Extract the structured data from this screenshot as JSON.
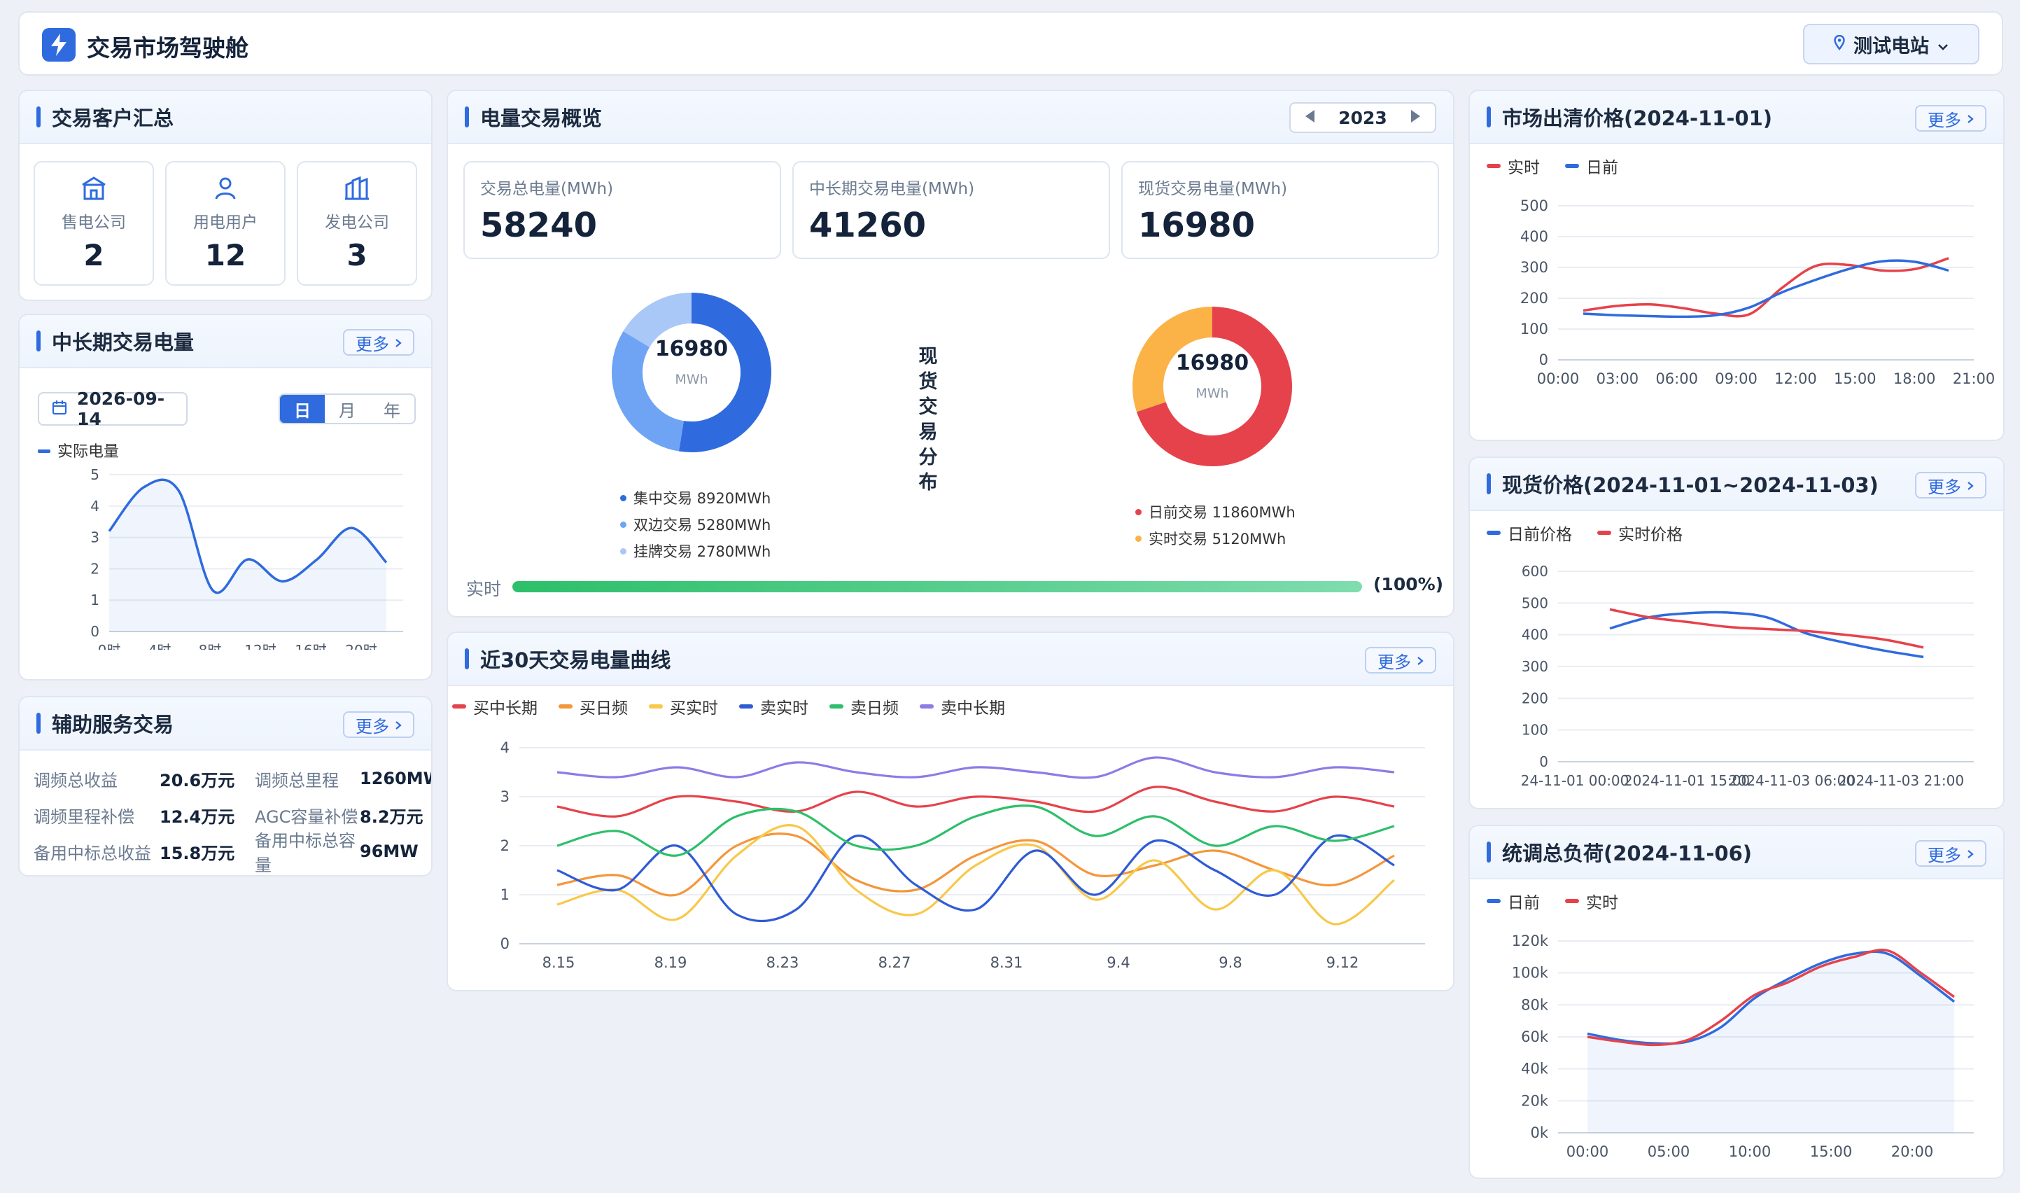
{
  "app": {
    "title": "交易市场驾驶舱",
    "station": "测试电站"
  },
  "more_label": "更多",
  "customers": {
    "title": "交易客户汇总",
    "items": [
      {
        "label": "售电公司",
        "value": "2",
        "icon": "building-icon"
      },
      {
        "label": "用电用户",
        "value": "12",
        "icon": "user-icon"
      },
      {
        "label": "发电公司",
        "value": "3",
        "icon": "factory-icon"
      }
    ]
  },
  "midlong": {
    "title": "中长期交易电量",
    "date": "2026-09-14",
    "tabs": [
      "日",
      "月",
      "年"
    ],
    "active_tab": "日",
    "chart_data": {
      "type": "area",
      "series": [
        {
          "name": "实际电量",
          "values": [
            3.2,
            4.6,
            4.5,
            1.3,
            2.3,
            1.6,
            2.3,
            3.3,
            2.2
          ]
        }
      ],
      "x_ticks": [
        "0时",
        "4时",
        "8时",
        "12时",
        "16时",
        "20时"
      ],
      "y_ticks": [
        "0",
        "1",
        "2",
        "3",
        "4",
        "5"
      ],
      "ylim": [
        0,
        5
      ],
      "color": "#2f6bde"
    }
  },
  "aux": {
    "title": "辅助服务交易",
    "rows": [
      [
        {
          "k": "调频总收益",
          "v": "20.6万元"
        },
        {
          "k": "调频总里程",
          "v": "1260MW"
        }
      ],
      [
        {
          "k": "调频里程补偿",
          "v": "12.4万元"
        },
        {
          "k": "AGC容量补偿",
          "v": "8.2万元"
        }
      ],
      [
        {
          "k": "备用中标总收益",
          "v": "15.8万元"
        },
        {
          "k": "备用中标总容量",
          "v": "96MW"
        }
      ]
    ]
  },
  "overview": {
    "title": "电量交易概览",
    "year": "2023",
    "stats": [
      {
        "label": "交易总电量(MWh)",
        "value": "58240"
      },
      {
        "label": "中长期交易电量(MWh)",
        "value": "41260"
      },
      {
        "label": "现货交易电量(MWh)",
        "value": "16980"
      }
    ],
    "center_title": "现货交易分布",
    "donut_left": {
      "total": "16980",
      "unit": "MWh",
      "chart_data": {
        "type": "pie",
        "slices": [
          {
            "name": "集中交易",
            "value": 8920,
            "label": "集中交易 8920MWh",
            "color": "#2f6bde"
          },
          {
            "name": "双边交易",
            "value": 5280,
            "label": "双边交易 5280MWh",
            "color": "#6fa4f5"
          },
          {
            "name": "挂牌交易",
            "value": 2780,
            "label": "挂牌交易 2780MWh",
            "color": "#a9c8f7"
          }
        ]
      }
    },
    "donut_right": {
      "total": "16980",
      "unit": "MWh",
      "chart_data": {
        "type": "pie",
        "slices": [
          {
            "name": "日前交易",
            "value": 11860,
            "label": "日前交易 11860MWh",
            "color": "#e6424b"
          },
          {
            "name": "实时交易",
            "value": 5120,
            "label": "实时交易 5120MWh",
            "color": "#fbb247"
          }
        ]
      }
    },
    "progress": {
      "label": "实时",
      "value": 100,
      "pct_text": "(100%)"
    }
  },
  "curve30": {
    "title": "近30天交易电量曲线",
    "chart_data": {
      "type": "line",
      "x_ticks": [
        "8.15",
        "8.19",
        "8.23",
        "8.27",
        "8.31",
        "9.4",
        "9.8",
        "9.12"
      ],
      "y_ticks": [
        "0",
        "1",
        "2",
        "3",
        "4"
      ],
      "ylim": [
        0,
        4
      ],
      "series": [
        {
          "name": "买中长期",
          "color": "#e6424b",
          "values": [
            2.8,
            2.6,
            3.0,
            2.9,
            2.7,
            3.1,
            2.8,
            3.0,
            2.9,
            2.7,
            3.2,
            2.9,
            2.7,
            3.0,
            2.8
          ]
        },
        {
          "name": "买日频",
          "color": "#f4963a",
          "values": [
            1.2,
            1.4,
            1.0,
            2.0,
            2.2,
            1.3,
            1.1,
            1.8,
            2.1,
            1.4,
            1.6,
            1.9,
            1.5,
            1.2,
            1.8
          ]
        },
        {
          "name": "买实时",
          "color": "#f8c84a",
          "values": [
            0.8,
            1.1,
            0.5,
            1.8,
            2.4,
            1.1,
            0.6,
            1.6,
            2.0,
            0.9,
            1.7,
            0.7,
            1.5,
            0.4,
            1.3
          ]
        },
        {
          "name": "卖实时",
          "color": "#2f5bd6",
          "values": [
            1.5,
            1.1,
            2.0,
            0.6,
            0.7,
            2.2,
            1.2,
            0.7,
            1.9,
            1.0,
            2.1,
            1.5,
            1.0,
            2.2,
            1.6
          ]
        },
        {
          "name": "卖日频",
          "color": "#2dbf6a",
          "values": [
            2.0,
            2.3,
            1.8,
            2.6,
            2.7,
            2.0,
            2.0,
            2.6,
            2.8,
            2.2,
            2.6,
            2.0,
            2.4,
            2.1,
            2.4
          ]
        },
        {
          "name": "卖中长期",
          "color": "#8d7be6",
          "values": [
            3.5,
            3.4,
            3.6,
            3.4,
            3.7,
            3.5,
            3.4,
            3.6,
            3.5,
            3.4,
            3.8,
            3.5,
            3.4,
            3.6,
            3.5
          ]
        }
      ]
    }
  },
  "clearing": {
    "title": "市场出清价格(2024-11-01)",
    "chart_data": {
      "type": "line",
      "x_ticks": [
        "00:00",
        "03:00",
        "06:00",
        "09:00",
        "12:00",
        "15:00",
        "18:00",
        "21:00"
      ],
      "y_ticks": [
        "0",
        "100",
        "200",
        "300",
        "400",
        "500"
      ],
      "ylim": [
        0,
        500
      ],
      "series": [
        {
          "name": "实时",
          "color": "#e6424b",
          "values": [
            160,
            175,
            180,
            168,
            150,
            148,
            235,
            305,
            308,
            290,
            295,
            330
          ]
        },
        {
          "name": "日前",
          "color": "#2f6bde",
          "values": [
            150,
            145,
            142,
            140,
            145,
            170,
            220,
            260,
            295,
            320,
            318,
            290
          ]
        }
      ]
    }
  },
  "spot": {
    "title": "现货价格(2024-11-01~2024-11-03)",
    "chart_data": {
      "type": "line",
      "x_ticks": [
        "24-11-01 00:00",
        "2024-11-01 15:00",
        "2024-11-03 06:00",
        "2024-11-03 21:00"
      ],
      "y_ticks": [
        "0",
        "100",
        "200",
        "300",
        "400",
        "500",
        "600"
      ],
      "ylim": [
        0,
        600
      ],
      "series": [
        {
          "name": "日前价格",
          "color": "#2f6bde",
          "values": [
            420,
            455,
            468,
            470,
            455,
            405,
            375,
            350,
            330
          ]
        },
        {
          "name": "实时价格",
          "color": "#e6424b",
          "values": [
            480,
            455,
            440,
            425,
            418,
            412,
            400,
            385,
            360
          ]
        }
      ]
    }
  },
  "load": {
    "title": "统调总负荷(2024-11-06)",
    "chart_data": {
      "type": "area",
      "x_ticks": [
        "00:00",
        "05:00",
        "10:00",
        "15:00",
        "20:00"
      ],
      "y_ticks": [
        "0k",
        "20k",
        "40k",
        "60k",
        "80k",
        "100k",
        "120k"
      ],
      "ylim": [
        0,
        120000
      ],
      "series": [
        {
          "name": "日前",
          "color": "#2f6bde",
          "values": [
            62000,
            58000,
            56000,
            57000,
            66000,
            84000,
            96000,
            106000,
            112000,
            112000,
            98000,
            82000
          ]
        },
        {
          "name": "实时",
          "color": "#e6424b",
          "values": [
            60000,
            57000,
            55000,
            58000,
            70000,
            86000,
            94000,
            104000,
            110000,
            114000,
            100000,
            85000
          ]
        }
      ]
    }
  }
}
